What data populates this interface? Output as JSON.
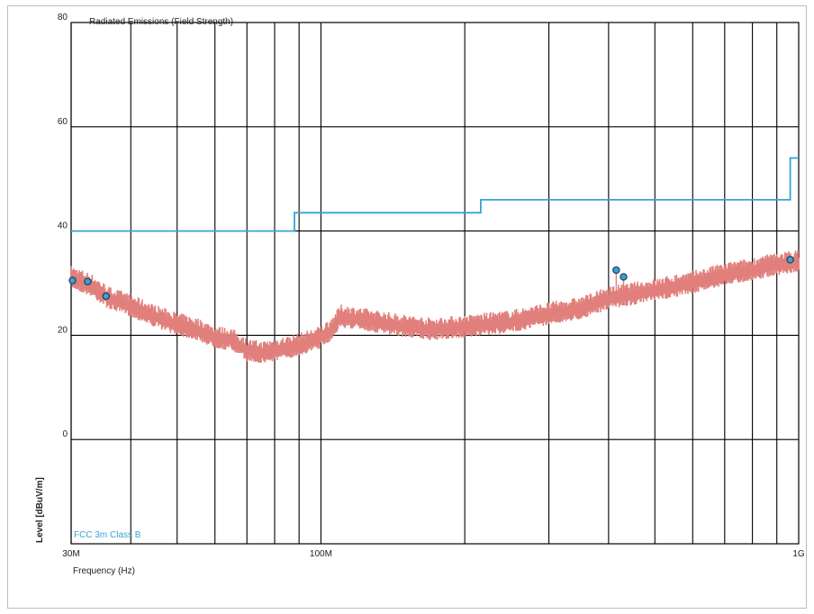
{
  "chart_data": {
    "type": "line",
    "title": "Radiated Emissions (Field Strength)",
    "xlabel": "Frequency (Hz)",
    "ylabel": "Level [dBuV/m]",
    "x_scale": "log",
    "xlim": [
      "30M",
      "1G"
    ],
    "ylim": [
      -20,
      80
    ],
    "grid": true,
    "x_ticks": [
      {
        "value": 30,
        "label": "30M"
      },
      {
        "value": 100,
        "label": "100M"
      },
      {
        "value": 1000,
        "label": "1G"
      }
    ],
    "y_ticks": [
      {
        "value": 80,
        "label": "80"
      },
      {
        "value": 60,
        "label": "60"
      },
      {
        "value": 40,
        "label": "40"
      },
      {
        "value": 20,
        "label": "20"
      },
      {
        "value": 0,
        "label": "0"
      }
    ],
    "limit_line": {
      "name": "FCC 3m Class B",
      "color": "#36a3d6",
      "points": [
        {
          "x": 30,
          "y": 40
        },
        {
          "x": 88,
          "y": 40
        },
        {
          "x": 88,
          "y": 43.5
        },
        {
          "x": 216,
          "y": 43.5
        },
        {
          "x": 216,
          "y": 46
        },
        {
          "x": 960,
          "y": 46
        },
        {
          "x": 960,
          "y": 54
        },
        {
          "x": 1000,
          "y": 54
        }
      ]
    },
    "trace": {
      "color": "#e07f7b",
      "points": [
        {
          "x": 30,
          "y": 31
        },
        {
          "x": 33,
          "y": 29.5
        },
        {
          "x": 36,
          "y": 27
        },
        {
          "x": 40,
          "y": 25.5
        },
        {
          "x": 45,
          "y": 23.5
        },
        {
          "x": 50,
          "y": 22
        },
        {
          "x": 55,
          "y": 21
        },
        {
          "x": 60,
          "y": 19.5
        },
        {
          "x": 65,
          "y": 19
        },
        {
          "x": 70,
          "y": 17
        },
        {
          "x": 75,
          "y": 16.5
        },
        {
          "x": 80,
          "y": 17
        },
        {
          "x": 90,
          "y": 18
        },
        {
          "x": 100,
          "y": 19.5
        },
        {
          "x": 105,
          "y": 21
        },
        {
          "x": 110,
          "y": 23.5
        },
        {
          "x": 120,
          "y": 23
        },
        {
          "x": 140,
          "y": 22
        },
        {
          "x": 170,
          "y": 21
        },
        {
          "x": 200,
          "y": 21.5
        },
        {
          "x": 250,
          "y": 22.5
        },
        {
          "x": 300,
          "y": 24
        },
        {
          "x": 350,
          "y": 25
        },
        {
          "x": 400,
          "y": 27
        },
        {
          "x": 500,
          "y": 28.5
        },
        {
          "x": 600,
          "y": 30
        },
        {
          "x": 700,
          "y": 31.5
        },
        {
          "x": 800,
          "y": 32.5
        },
        {
          "x": 900,
          "y": 33.5
        },
        {
          "x": 1000,
          "y": 34
        }
      ]
    },
    "markers": [
      {
        "x": 30.2,
        "y": 30.5
      },
      {
        "x": 32.5,
        "y": 30.3
      },
      {
        "x": 35.5,
        "y": 27.5
      },
      {
        "x": 415,
        "y": 32.5
      },
      {
        "x": 430,
        "y": 31.2
      },
      {
        "x": 960,
        "y": 34.5
      }
    ]
  }
}
